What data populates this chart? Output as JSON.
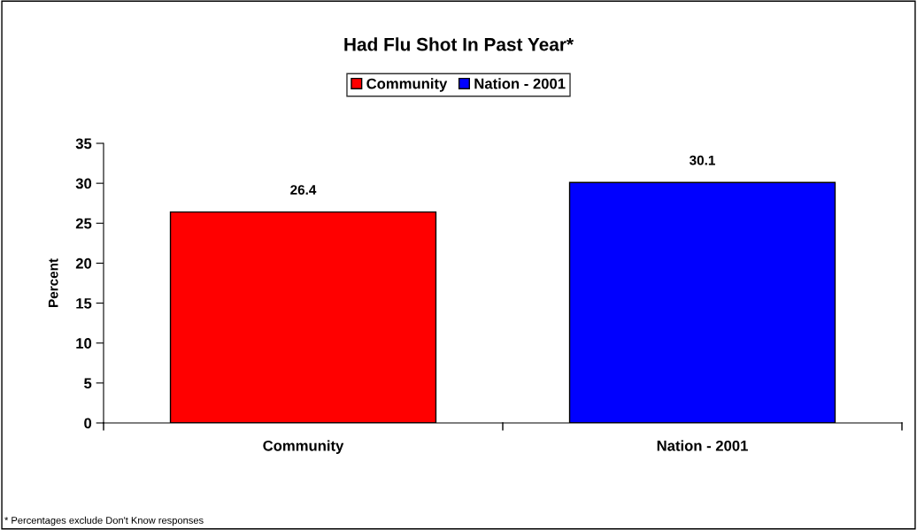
{
  "chart_data": {
    "type": "bar",
    "title": "Had Flu Shot In Past Year*",
    "ylabel": "Percent",
    "categories": [
      "Community",
      "Nation - 2001"
    ],
    "series": [
      {
        "name": "Community",
        "color": "#ff0000",
        "values": [
          26.4,
          null
        ]
      },
      {
        "name": "Nation - 2001",
        "color": "#0000ff",
        "values": [
          null,
          30.1
        ]
      }
    ],
    "ylim": [
      0,
      35
    ],
    "yticks": [
      0,
      5,
      10,
      15,
      20,
      25,
      30,
      35
    ],
    "data_labels": true,
    "legend": "top",
    "grid": false,
    "annotations": [
      "* Percentages exclude Don't Know responses"
    ]
  }
}
